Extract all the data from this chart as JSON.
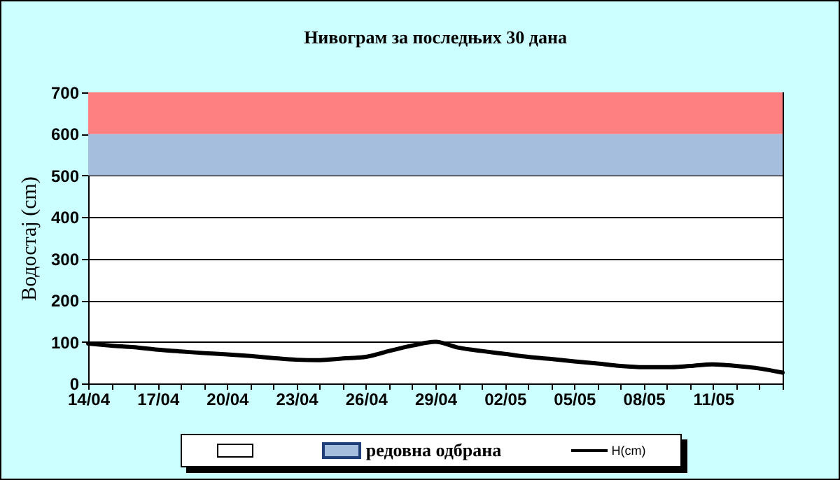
{
  "chart_data": {
    "type": "line",
    "title": "Нивограм за последњих 30 дана",
    "ylabel": "Водостај (cm)",
    "categories": [
      "14/04",
      null,
      null,
      "17/04",
      null,
      null,
      "20/04",
      null,
      null,
      "23/04",
      null,
      null,
      "26/04",
      null,
      null,
      "29/04",
      null,
      null,
      "02/05",
      null,
      null,
      "05/05",
      null,
      null,
      "08/05",
      null,
      null,
      "11/05",
      null,
      null,
      null
    ],
    "series": [
      {
        "name": "H(cm)",
        "color": "#000000",
        "values": [
          96,
          91,
          87,
          81,
          77,
          73,
          70,
          66,
          61,
          57,
          56,
          60,
          64,
          78,
          91,
          100,
          86,
          78,
          71,
          64,
          59,
          53,
          48,
          42,
          39,
          39,
          42,
          46,
          42,
          36,
          26
        ]
      }
    ],
    "bands": [
      {
        "axis": "y",
        "from": 500,
        "to": 600,
        "label": "редовна одбрана",
        "color": "#a6bedd"
      },
      {
        "axis": "y",
        "from": 600,
        "to": 700,
        "color": "#ff8080"
      }
    ],
    "ylim": [
      0,
      700
    ],
    "yticks": [
      0,
      100,
      200,
      300,
      400,
      500,
      600,
      700
    ],
    "grid": "y",
    "legend": "bottom",
    "marker": "none",
    "line_style": "solid"
  }
}
